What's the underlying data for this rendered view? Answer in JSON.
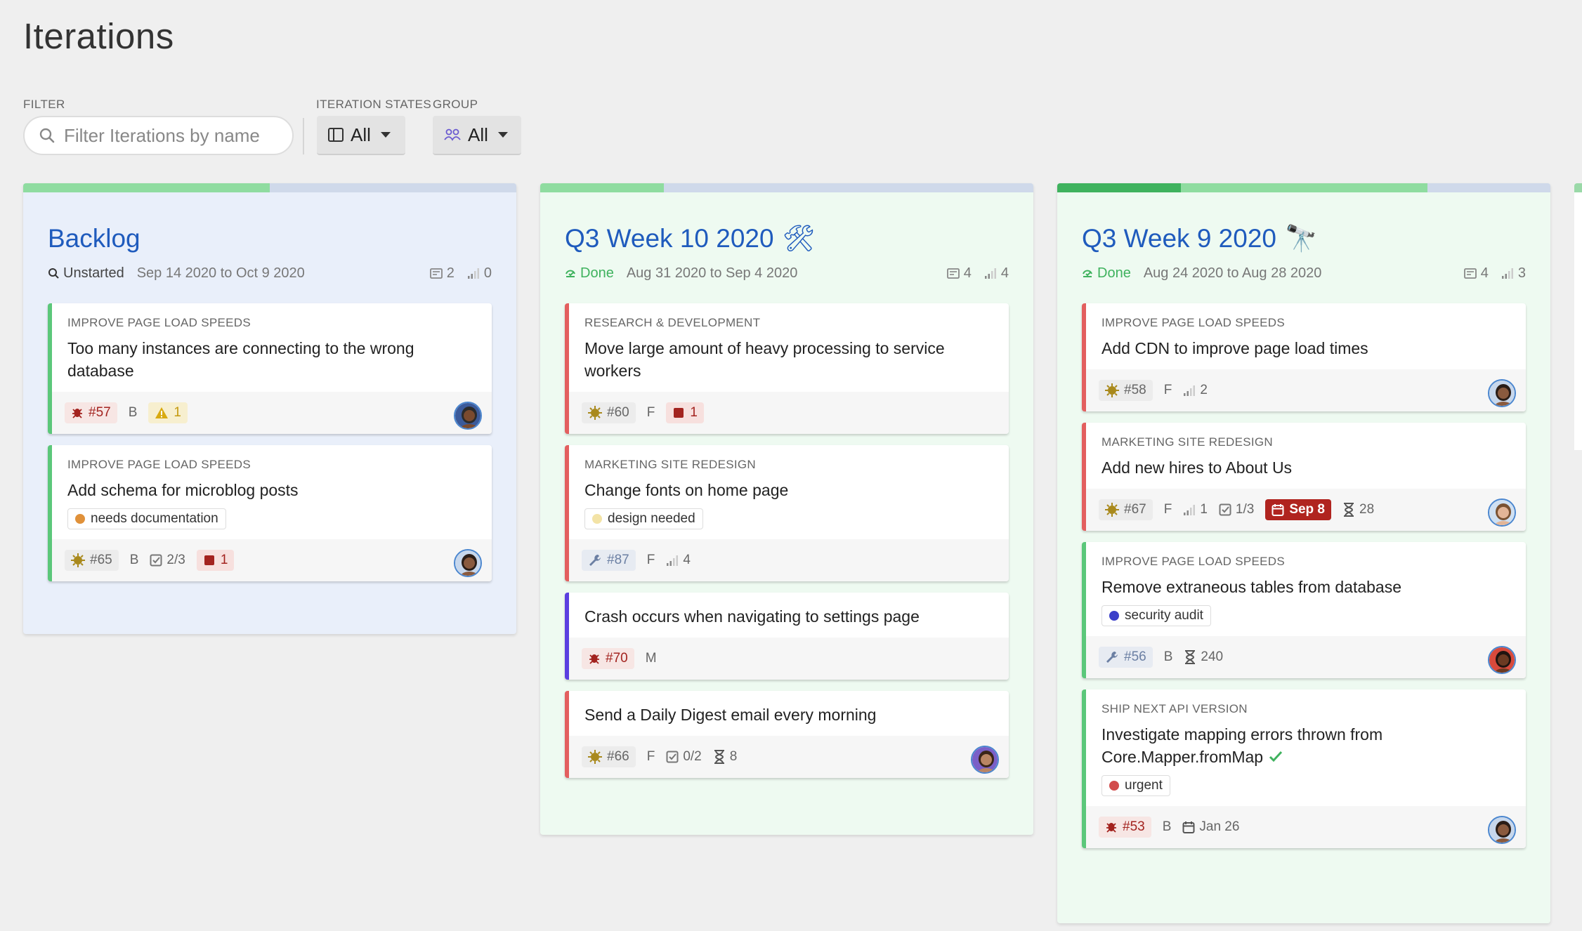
{
  "page": {
    "title": "Iterations"
  },
  "controls": {
    "filter_label": "FILTER",
    "filter_placeholder": "Filter Iterations by name",
    "states_label": "ITERATION STATES",
    "states_value": "All",
    "group_label": "GROUP",
    "group_value": "All"
  },
  "colors": {
    "bug": "#a3231f",
    "feature": "#a9891c",
    "chore": "#6b7fa3",
    "epic_green": "#5bc77a",
    "epic_red": "#e35f5f",
    "epic_purple": "#5b3fe0",
    "title_blue": "#1f5bbd"
  },
  "columns": [
    {
      "title": "Backlog",
      "emoji": "",
      "state": "Unstarted",
      "state_icon": "unstarted-icon",
      "dates": "Sep 14 2020 to Oct 9 2020",
      "stories_count": "2",
      "points": "0",
      "background": "#e9effa",
      "progress": {
        "done": 0.5,
        "in_progress": 0.0
      },
      "cards": [
        {
          "epic": "IMPROVE PAGE LOAD SPEEDS",
          "title": "Too many instances are connecting to the wrong database",
          "accent": "#5bc77a",
          "label": null,
          "foot": [
            {
              "kind": "bug",
              "text": "#57"
            },
            {
              "kind": "text",
              "text": "B"
            },
            {
              "kind": "warn",
              "text": "1"
            }
          ],
          "avatar": "avatar-man-dark"
        },
        {
          "epic": "IMPROVE PAGE LOAD SPEEDS",
          "title": "Add schema for microblog posts",
          "accent": "#5bc77a",
          "label": {
            "text": "needs documentation",
            "color": "#e0913a"
          },
          "foot": [
            {
              "kind": "feature",
              "text": "#65"
            },
            {
              "kind": "text",
              "text": "B"
            },
            {
              "kind": "tasks",
              "text": "2/3"
            },
            {
              "kind": "block",
              "text": "1"
            }
          ],
          "avatar": "avatar-woman-dark"
        }
      ]
    },
    {
      "title": "Q3 Week 10 2020",
      "emoji": "🛠",
      "state": "Done",
      "state_icon": "done-icon",
      "dates": "Aug 31 2020 to Sep 4 2020",
      "stories_count": "4",
      "points": "4",
      "background": "#eefaf1",
      "progress": {
        "done": 0.25,
        "in_progress": 0.0
      },
      "cards": [
        {
          "epic": "RESEARCH & DEVELOPMENT",
          "title": "Move large amount of heavy processing to service workers",
          "accent": "#e35f5f",
          "label": null,
          "foot": [
            {
              "kind": "feature",
              "text": "#60"
            },
            {
              "kind": "text",
              "text": "F"
            },
            {
              "kind": "block",
              "text": "1"
            }
          ],
          "avatar": null
        },
        {
          "epic": "MARKETING SITE REDESIGN",
          "title": "Change fonts on home page",
          "accent": "#e35f5f",
          "label": {
            "text": "design needed",
            "color": "#f3e3a6"
          },
          "foot": [
            {
              "kind": "chore",
              "text": "#87"
            },
            {
              "kind": "text",
              "text": "F"
            },
            {
              "kind": "estimate",
              "text": "4"
            }
          ],
          "avatar": null
        },
        {
          "epic": "",
          "title": "Crash occurs when navigating to settings page",
          "accent": "#5b3fe0",
          "label": null,
          "foot": [
            {
              "kind": "bug",
              "text": "#70"
            },
            {
              "kind": "text",
              "text": "M"
            }
          ],
          "avatar": null
        },
        {
          "epic": "",
          "title": "Send a Daily Digest email every morning",
          "accent": "#e35f5f",
          "label": null,
          "foot": [
            {
              "kind": "feature",
              "text": "#66"
            },
            {
              "kind": "text",
              "text": "F"
            },
            {
              "kind": "tasks",
              "text": "0/2"
            },
            {
              "kind": "hourglass",
              "text": "8"
            }
          ],
          "avatar": "avatar-woman-curly"
        }
      ]
    },
    {
      "title": "Q3 Week 9 2020",
      "emoji": "🔭",
      "state": "Done",
      "state_icon": "done-icon",
      "dates": "Aug 24 2020 to Aug 28 2020",
      "stories_count": "4",
      "points": "3",
      "background": "#eefaf1",
      "progress": {
        "done": 0.25,
        "in_progress": 0.5
      },
      "cards": [
        {
          "epic": "IMPROVE PAGE LOAD SPEEDS",
          "title": "Add CDN to improve page load times",
          "accent": "#e35f5f",
          "label": null,
          "foot": [
            {
              "kind": "feature",
              "text": "#58"
            },
            {
              "kind": "text",
              "text": "F"
            },
            {
              "kind": "estimate",
              "text": "2"
            }
          ],
          "avatar": "avatar-woman-dark"
        },
        {
          "epic": "MARKETING SITE REDESIGN",
          "title": "Add new hires to About Us",
          "accent": "#e35f5f",
          "label": null,
          "foot": [
            {
              "kind": "feature",
              "text": "#67"
            },
            {
              "kind": "text",
              "text": "F"
            },
            {
              "kind": "estimate",
              "text": "1"
            },
            {
              "kind": "tasks",
              "text": "1/3"
            },
            {
              "kind": "due",
              "text": "Sep 8"
            },
            {
              "kind": "hourglass",
              "text": "28"
            }
          ],
          "avatar": "avatar-woman-light"
        },
        {
          "epic": "IMPROVE PAGE LOAD SPEEDS",
          "title": "Remove extraneous tables from database",
          "accent": "#5bc77a",
          "label": {
            "text": "security audit",
            "color": "#3b3fc9"
          },
          "foot": [
            {
              "kind": "chore",
              "text": "#56"
            },
            {
              "kind": "text",
              "text": "B"
            },
            {
              "kind": "hourglass",
              "text": "240"
            }
          ],
          "avatar": "avatar-man-red"
        },
        {
          "epic": "SHIP NEXT API VERSION",
          "title": "Investigate mapping errors thrown from Core.Mapper.fromMap",
          "title_check": true,
          "accent": "#5bc77a",
          "label": {
            "text": "urgent",
            "color": "#d24b4b"
          },
          "foot": [
            {
              "kind": "bug",
              "text": "#53"
            },
            {
              "kind": "text",
              "text": "B"
            },
            {
              "kind": "date",
              "text": "Jan 26"
            }
          ],
          "avatar": "avatar-woman-dark"
        }
      ]
    }
  ]
}
